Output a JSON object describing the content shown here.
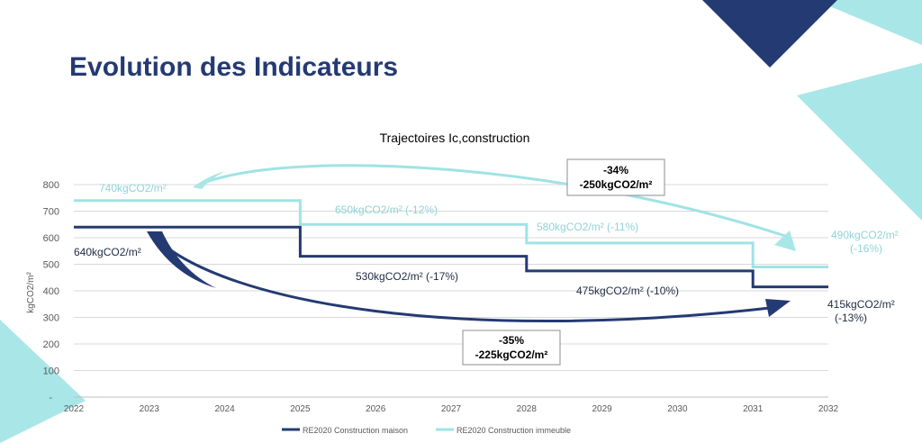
{
  "slide": {
    "title": "Evolution des Indicateurs"
  },
  "colors": {
    "maison": "#243a73",
    "immeuble": "#9fe3e5",
    "immeuble_text": "#8fd3d8",
    "accent_navy": "#243a73",
    "accent_cyan": "#a9e6e8",
    "grid": "#d9d9d9",
    "axis_text": "#595959"
  },
  "chart_data": {
    "type": "line",
    "step": true,
    "title": "Trajectoires Ic,construction",
    "xlabel": "",
    "ylabel": "kgCO2/m²",
    "x": [
      2022,
      2023,
      2024,
      2025,
      2026,
      2027,
      2028,
      2029,
      2030,
      2031,
      2032
    ],
    "ylim": [
      0,
      800
    ],
    "yticks": [
      100,
      200,
      300,
      400,
      500,
      600,
      700,
      800
    ],
    "zero_tick_label": "-",
    "grid": true,
    "legend_position": "bottom",
    "series": [
      {
        "name": "RE2020 Construction maison",
        "values": [
          640,
          640,
          640,
          530,
          530,
          530,
          475,
          475,
          475,
          415,
          415
        ]
      },
      {
        "name": "RE2020 Construction immeuble",
        "values": [
          740,
          740,
          740,
          650,
          650,
          650,
          580,
          580,
          580,
          490,
          490
        ]
      }
    ],
    "annotations": {
      "maison": [
        "640kgCO2/m²",
        "530kgCO2/m² (-17%)",
        "475kgCO2/m² (-10%)",
        "415kgCO2/m²",
        "(-13%)"
      ],
      "immeuble": [
        "740kgCO2/m²",
        "650kgCO2/m² (-12%)",
        "580kgCO2/m² (-11%)",
        "490kgCO2/m²",
        "(-16%)"
      ],
      "box_immeuble": [
        "-34%",
        "-250kgCO2/m²"
      ],
      "box_maison": [
        "-35%",
        "-225kgCO2/m²"
      ]
    }
  }
}
